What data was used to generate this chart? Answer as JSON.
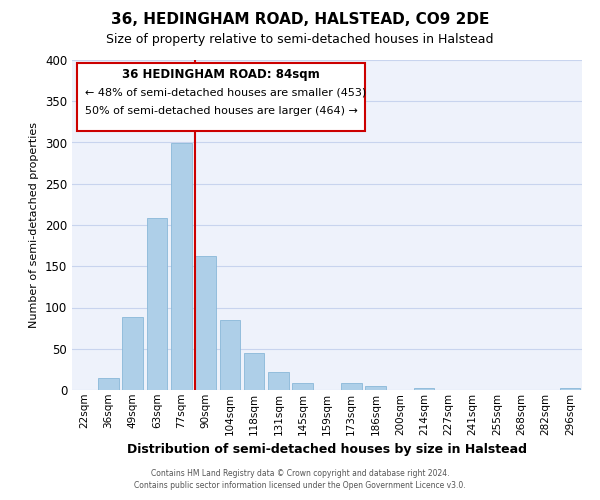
{
  "title": "36, HEDINGHAM ROAD, HALSTEAD, CO9 2DE",
  "subtitle": "Size of property relative to semi-detached houses in Halstead",
  "xlabel": "Distribution of semi-detached houses by size in Halstead",
  "ylabel": "Number of semi-detached properties",
  "bar_labels": [
    "22sqm",
    "36sqm",
    "49sqm",
    "63sqm",
    "77sqm",
    "90sqm",
    "104sqm",
    "118sqm",
    "131sqm",
    "145sqm",
    "159sqm",
    "173sqm",
    "186sqm",
    "200sqm",
    "214sqm",
    "227sqm",
    "241sqm",
    "255sqm",
    "268sqm",
    "282sqm",
    "296sqm"
  ],
  "bar_values": [
    0,
    15,
    88,
    208,
    299,
    163,
    85,
    45,
    22,
    8,
    0,
    8,
    5,
    0,
    2,
    0,
    0,
    0,
    0,
    0,
    3
  ],
  "bar_color": "#aecfe8",
  "bar_edge_color": "#8ab8d8",
  "ylim": [
    0,
    400
  ],
  "yticks": [
    0,
    50,
    100,
    150,
    200,
    250,
    300,
    350,
    400
  ],
  "vline_x": 4.57,
  "vline_color": "#cc0000",
  "annotation_title": "36 HEDINGHAM ROAD: 84sqm",
  "annotation_line1": "← 48% of semi-detached houses are smaller (453)",
  "annotation_line2": "50% of semi-detached houses are larger (464) →",
  "footer1": "Contains HM Land Registry data © Crown copyright and database right 2024.",
  "footer2": "Contains public sector information licensed under the Open Government Licence v3.0.",
  "bg_color": "#eef2fb",
  "grid_color": "#c8d4ee"
}
